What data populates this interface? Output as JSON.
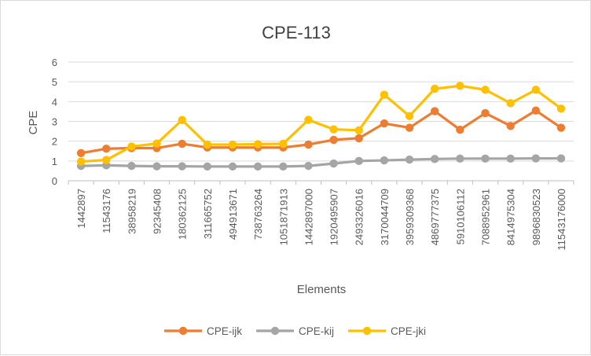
{
  "chart_data": {
    "type": "line",
    "title": "CPE-113",
    "xlabel": "Elements",
    "ylabel": "CPE",
    "ylim": [
      0,
      6
    ],
    "yticks": [
      0,
      1,
      2,
      3,
      4,
      5,
      6
    ],
    "grid": true,
    "legend_position": "bottom",
    "categories": [
      "1442897",
      "11543176",
      "38958219",
      "92345408",
      "180362125",
      "311665752",
      "494913671",
      "738763264",
      "1051871913",
      "1442897000",
      "1920495907",
      "2493326016",
      "3170044709",
      "3959309368",
      "4869777375",
      "5910106112",
      "7088952961",
      "8414975304",
      "9896830523",
      "11543176000"
    ],
    "series": [
      {
        "name": "CPE-ijk",
        "color": "#ed7d31",
        "values": [
          1.4,
          1.62,
          1.65,
          1.65,
          1.87,
          1.68,
          1.68,
          1.68,
          1.68,
          1.83,
          2.07,
          2.15,
          2.9,
          2.68,
          3.52,
          2.58,
          3.42,
          2.77,
          3.55,
          2.68
        ]
      },
      {
        "name": "CPE-kij",
        "color": "#a5a5a5",
        "values": [
          0.75,
          0.78,
          0.75,
          0.73,
          0.73,
          0.72,
          0.72,
          0.72,
          0.72,
          0.75,
          0.87,
          1.0,
          1.03,
          1.07,
          1.1,
          1.12,
          1.12,
          1.12,
          1.13,
          1.13
        ]
      },
      {
        "name": "CPE-jki",
        "color": "#ffc000",
        "values": [
          0.97,
          1.05,
          1.73,
          1.88,
          3.07,
          1.83,
          1.83,
          1.85,
          1.87,
          3.08,
          2.6,
          2.55,
          4.35,
          3.27,
          4.65,
          4.8,
          4.6,
          3.92,
          4.6,
          3.65
        ]
      }
    ]
  }
}
